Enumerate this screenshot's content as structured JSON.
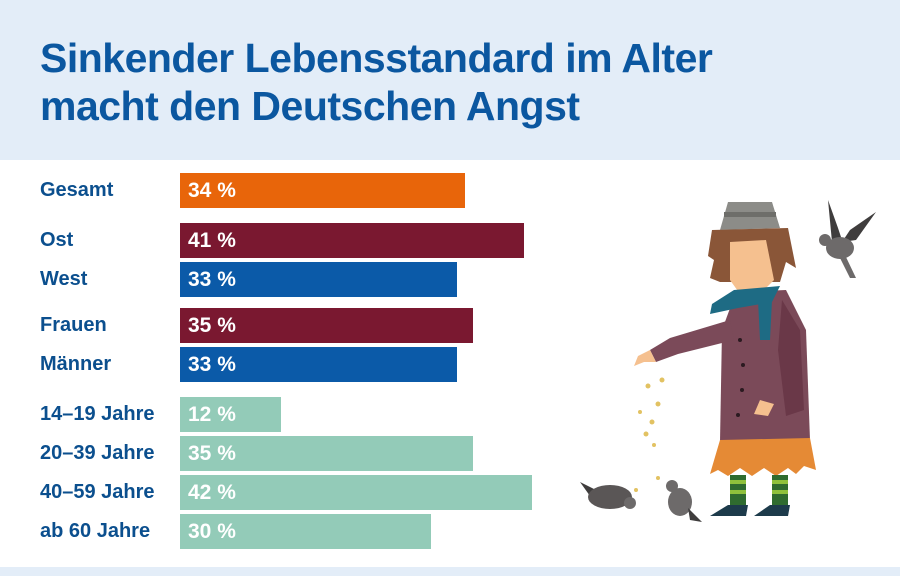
{
  "chart_data": {
    "type": "bar",
    "orientation": "horizontal",
    "title": "Sinkender Lebensstandard im Alter macht den Deutschen Angst",
    "title_lines": [
      "Sinkender Lebensstandard im Alter",
      "macht den Deutschen Angst"
    ],
    "xlabel": "",
    "ylabel": "",
    "xlim": [
      0,
      42
    ],
    "grid": false,
    "unit": "%",
    "categories": [
      "Gesamt",
      "Ost",
      "West",
      "Frauen",
      "Männer",
      "14–19 Jahre",
      "20–39 Jahre",
      "40–59 Jahre",
      "ab 60 Jahre"
    ],
    "values": [
      34,
      41,
      33,
      35,
      33,
      12,
      35,
      42,
      30
    ],
    "value_labels": [
      "34 %",
      "41 %",
      "33 %",
      "35 %",
      "33 %",
      "12 %",
      "35 %",
      "42 %",
      "30 %"
    ],
    "groups": [
      "total",
      "region",
      "region",
      "gender",
      "gender",
      "age",
      "age",
      "age",
      "age"
    ],
    "colors": [
      "#e8650a",
      "#7a1830",
      "#0b5aa8",
      "#7a1830",
      "#0b5aa8",
      "#93cbb8",
      "#93cbb8",
      "#93cbb8",
      "#93cbb8"
    ]
  },
  "illustration": {
    "description": "Woman in bucket hat and scarf feeding pigeons",
    "colors": {
      "coat": "#7b4a59",
      "coat_shadow": "#6a3848",
      "skirt": "#e58a35",
      "scarf": "#1e6b84",
      "skin": "#f5c08f",
      "hair": "#8a5638",
      "hat": "#8c8c88",
      "pigeon": "#6d6a6a",
      "socks_dark": "#2f6b2f",
      "socks_light": "#8fc13c",
      "shoes": "#1d3b4b",
      "seeds": "#e2c262"
    }
  }
}
